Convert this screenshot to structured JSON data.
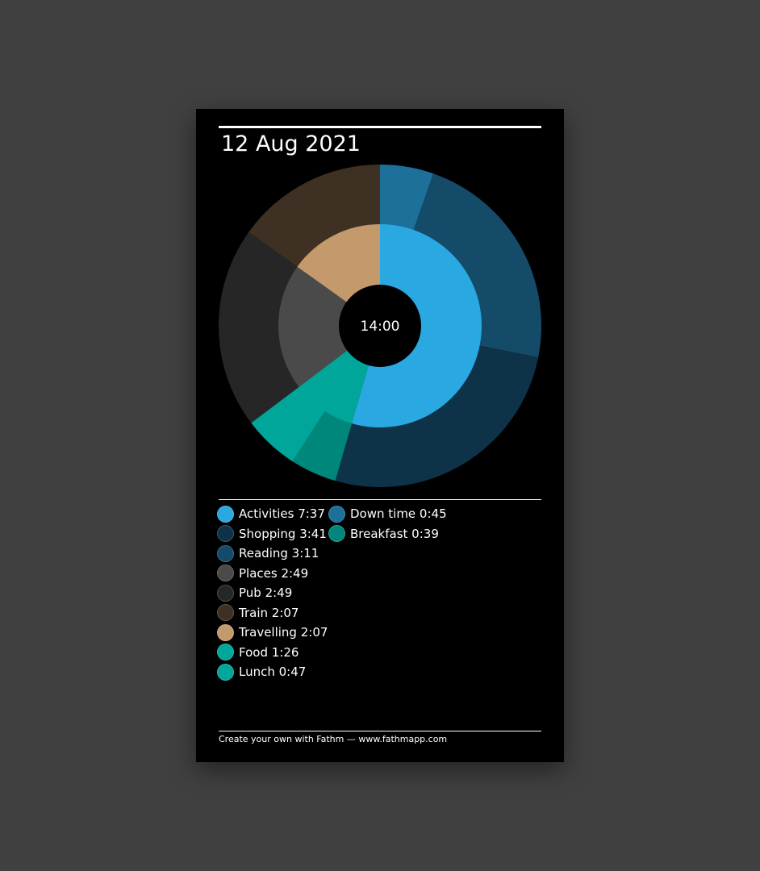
{
  "title": "12 Aug 2021",
  "footer": "Create your own with Fathm — www.fathmapp.com",
  "chart_data": {
    "type": "pie",
    "subtype": "sunburst-donut",
    "title": "12 Aug 2021",
    "center_label": "14:00",
    "start_angle_deg": 0,
    "direction": "clockwise",
    "inner_ring": [
      {
        "name": "Activities",
        "value_label": "7:37",
        "minutes": 457,
        "color": "#29a8e1"
      },
      {
        "name": "Food",
        "value_label": "1:26",
        "minutes": 86,
        "color": "#00a69a"
      },
      {
        "name": "Places",
        "value_label": "2:49",
        "minutes": 169,
        "color": "#4a4a4a"
      },
      {
        "name": "Travelling",
        "value_label": "2:07",
        "minutes": 127,
        "color": "#c49a6c"
      }
    ],
    "outer_ring": [
      {
        "name": "Down time",
        "value_label": "0:45",
        "minutes": 45,
        "color": "#1d7099"
      },
      {
        "name": "Reading",
        "value_label": "3:11",
        "minutes": 191,
        "color": "#144b69"
      },
      {
        "name": "Shopping",
        "value_label": "3:41",
        "minutes": 221,
        "color": "#0e3348"
      },
      {
        "name": "Breakfast",
        "value_label": "0:39",
        "minutes": 39,
        "color": "#00877c"
      },
      {
        "name": "Lunch",
        "value_label": "0:47",
        "minutes": 47,
        "color": "#00a69a"
      },
      {
        "name": "Pub",
        "value_label": "2:49",
        "minutes": 169,
        "color": "#262626"
      },
      {
        "name": "Train",
        "value_label": "2:07",
        "minutes": 127,
        "color": "#3e3022"
      }
    ],
    "legend": {
      "placement": "bottom",
      "columns": [
        [
          {
            "label": "Activities 7:37",
            "color": "#29a8e1"
          },
          {
            "label": "Shopping 3:41",
            "color": "#0e3348"
          },
          {
            "label": "Reading 3:11",
            "color": "#144b69"
          },
          {
            "label": "Places 2:49",
            "color": "#4a4a4a"
          },
          {
            "label": "Pub 2:49",
            "color": "#262626"
          },
          {
            "label": "Train 2:07",
            "color": "#3e3022"
          },
          {
            "label": "Travelling 2:07",
            "color": "#c49a6c"
          },
          {
            "label": "Food 1:26",
            "color": "#00a69a"
          },
          {
            "label": "Lunch 0:47",
            "color": "#00a69a"
          }
        ],
        [
          {
            "label": "Down time 0:45",
            "color": "#1d7099"
          },
          {
            "label": "Breakfast 0:39",
            "color": "#00877c"
          }
        ]
      ]
    }
  }
}
